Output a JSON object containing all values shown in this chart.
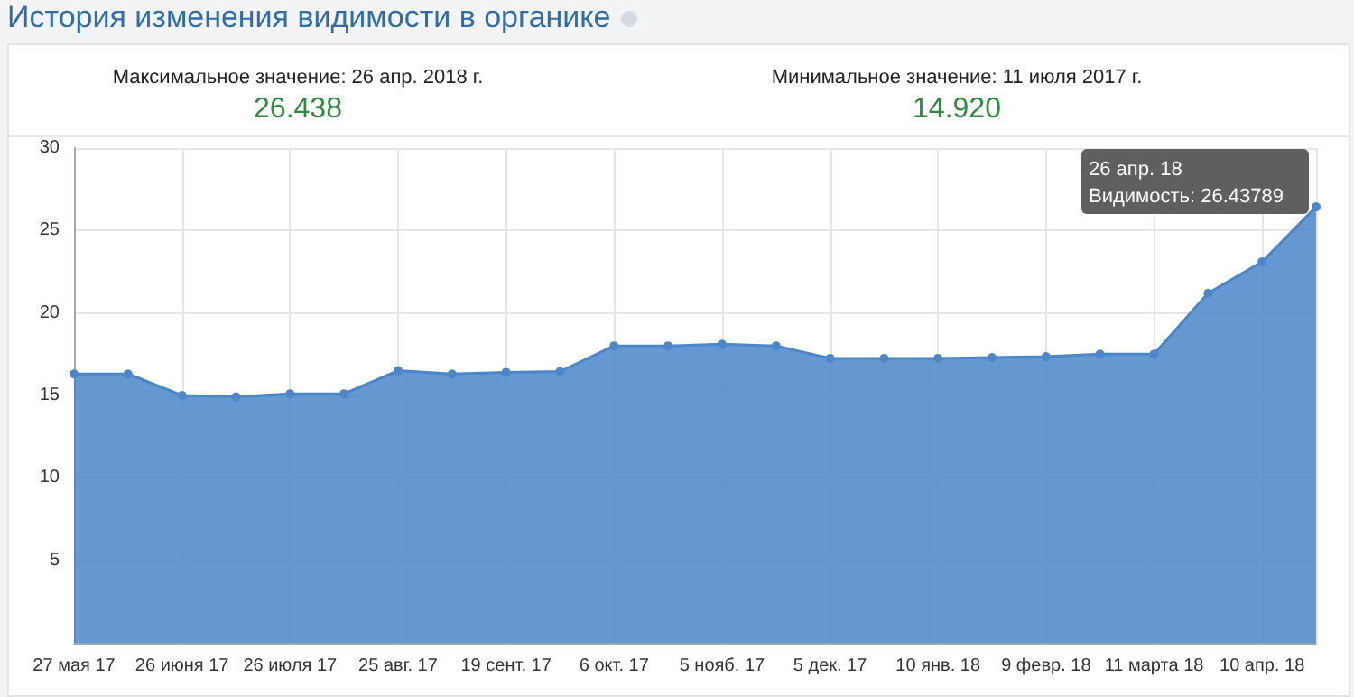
{
  "chart_data": {
    "type": "area",
    "title": "История изменения видимости в органике",
    "annotations": [
      "Максимальное значение: 26 апр. 2018 г.",
      "26.438",
      "Минимальное значение: 11 июля 2017 г.",
      "14.920",
      "26 апр. 18\nВидимость: 26.43789"
    ],
    "categories": [
      "27 мая 17",
      null,
      "26 июня 17",
      null,
      "26 июля 17",
      null,
      "25 авг. 17",
      null,
      "19 сент. 17",
      null,
      "6 окт. 17",
      null,
      "5 нояб. 17",
      null,
      "5 дек. 17",
      null,
      "10 янв. 18",
      null,
      "9 февр. 18",
      null,
      "11 марта 18",
      null,
      "10 апр. 18",
      null
    ],
    "series": [
      {
        "color": "#4a86c8",
        "values": [
          16.3,
          16.3,
          15.0,
          14.92,
          15.1,
          15.1,
          16.5,
          16.3,
          16.4,
          16.45,
          18.0,
          18.0,
          18.1,
          18.0,
          17.25,
          17.25,
          17.25,
          17.3,
          17.35,
          17.5,
          17.5,
          21.2,
          23.1,
          26.438
        ]
      }
    ],
    "ylim": [
      0,
      30
    ],
    "yticks": [
      5,
      10,
      15,
      20,
      25,
      30
    ],
    "grid": true,
    "marker": "circle",
    "line_style": "solid"
  }
}
